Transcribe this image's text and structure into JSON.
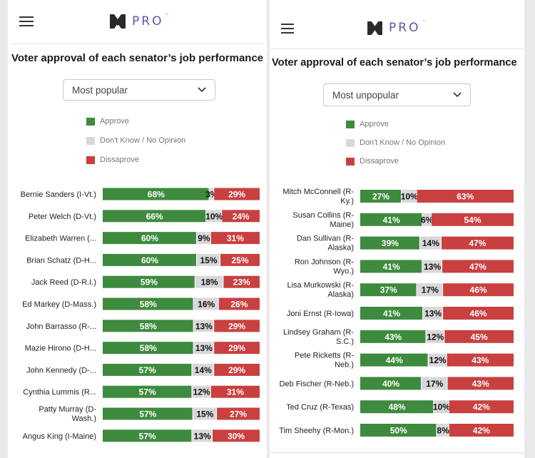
{
  "brand": {
    "logo_text": "PRO",
    "logo_tm": "™"
  },
  "colors": {
    "approve": "#3e8a3e",
    "dont_know": "#d8d8d8",
    "disapprove": "#c94040",
    "brand": "#5a58a8"
  },
  "legend": [
    {
      "label": "Approve",
      "color": "#3e8a3e"
    },
    {
      "label": "Don't Know / No Opinion",
      "color": "#d8d8d8"
    },
    {
      "label": "Dissaprove",
      "color": "#c94040"
    }
  ],
  "panels": [
    {
      "title": "Voter approval of each senator’s job performance",
      "select_value": "Most popular"
    },
    {
      "title": "Voter approval of each senator’s job performance",
      "select_value": "Most unpopular"
    }
  ],
  "chart_data": [
    {
      "type": "bar",
      "orientation": "horizontal-stacked-percent",
      "title": "Voter approval of each senator’s job performance",
      "sort": "Most popular",
      "legend": [
        "Approve",
        "Don't Know / No Opinion",
        "Dissaprove"
      ],
      "categories": [
        [
          "Bernie Sanders (I-Vt.)"
        ],
        [
          "Peter Welch (D-Vt.)"
        ],
        [
          "Elizabeth Warren (..."
        ],
        [
          "Brian Schatz (D-H..."
        ],
        [
          "Jack Reed (D-R.I.)"
        ],
        [
          "Ed Markey (D-Mass.)"
        ],
        [
          "John Barrasso (R-..."
        ],
        [
          "Mazie Hirono (D-H..."
        ],
        [
          "John Kennedy (D-..."
        ],
        [
          "Cynthia Lummis (R..."
        ],
        [
          "Patty Murray (D-",
          "Wash.)"
        ],
        [
          "Angus King (I-Maine)"
        ]
      ],
      "series": [
        {
          "name": "Approve",
          "values": [
            68,
            66,
            60,
            60,
            59,
            58,
            58,
            58,
            57,
            57,
            57,
            57
          ]
        },
        {
          "name": "Don't Know / No Opinion",
          "values": [
            3,
            10,
            9,
            15,
            18,
            16,
            13,
            13,
            14,
            12,
            15,
            13
          ]
        },
        {
          "name": "Dissaprove",
          "values": [
            29,
            24,
            31,
            25,
            23,
            26,
            29,
            29,
            29,
            31,
            27,
            30
          ]
        }
      ],
      "xlim": [
        0,
        100
      ]
    },
    {
      "type": "bar",
      "orientation": "horizontal-stacked-percent",
      "title": "Voter approval of each senator’s job performance",
      "sort": "Most unpopular",
      "legend": [
        "Approve",
        "Don't Know / No Opinion",
        "Dissaprove"
      ],
      "categories": [
        [
          "Mitch McConnell (R-",
          "Ky.)"
        ],
        [
          "Susan Collins (R-",
          "Maine)"
        ],
        [
          "Dan Sullivan (R-",
          "Alaska)"
        ],
        [
          "Ron Johnson (R-",
          "Wyo.)"
        ],
        [
          "Lisa Murkowski (R-",
          "Alaska)"
        ],
        [
          "Joni Ernst (R-Iowa)"
        ],
        [
          "Lindsey Graham (R-",
          "S.C.)"
        ],
        [
          "Pete Ricketts (R-",
          "Neb.)"
        ],
        [
          "Deb Fischer (R-Neb.)"
        ],
        [
          "Ted Cruz (R-Texas)"
        ],
        [
          "Tim Sheehy (R-Mon.)"
        ]
      ],
      "series": [
        {
          "name": "Approve",
          "values": [
            27,
            41,
            39,
            41,
            37,
            41,
            43,
            44,
            40,
            48,
            50
          ]
        },
        {
          "name": "Don't Know / No Opinion",
          "values": [
            10,
            6,
            14,
            13,
            17,
            13,
            12,
            12,
            17,
            10,
            8
          ]
        },
        {
          "name": "Dissaprove",
          "values": [
            63,
            54,
            47,
            47,
            46,
            46,
            45,
            43,
            43,
            42,
            42
          ]
        }
      ],
      "xlim": [
        0,
        100
      ]
    }
  ]
}
